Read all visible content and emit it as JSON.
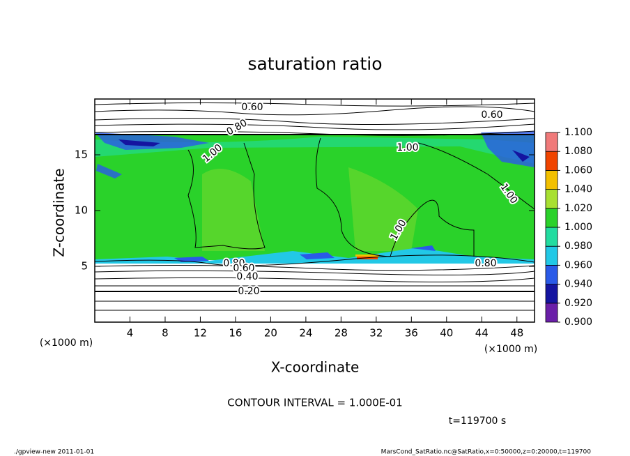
{
  "chart_data": {
    "type": "contour",
    "title": "saturation ratio",
    "x_label": "X-coordinate",
    "y_label": "Z-coordinate",
    "x_unit": "(×1000 m)",
    "xlim": [
      0,
      50
    ],
    "xticks": [
      4,
      8,
      12,
      16,
      20,
      24,
      28,
      32,
      36,
      40,
      44,
      48
    ],
    "ylim": [
      0,
      20
    ],
    "yticks": [
      5,
      10,
      15
    ],
    "grid": false,
    "contour_labels": [
      "0.60",
      "0.60",
      "0.80",
      "1.00",
      "1.00",
      "1.00",
      "1.00",
      "0.80",
      "0.60",
      "0.40",
      "0.20",
      "0.80"
    ],
    "colorbar": {
      "levels": [
        {
          "value": 0.9,
          "label": "0.900"
        },
        {
          "value": 0.92,
          "label": "0.920"
        },
        {
          "value": 0.94,
          "label": "0.940"
        },
        {
          "value": 0.96,
          "label": "0.960"
        },
        {
          "value": 0.98,
          "label": "0.980"
        },
        {
          "value": 1.0,
          "label": "1.000"
        },
        {
          "value": 1.02,
          "label": "1.020"
        },
        {
          "value": 1.04,
          "label": "1.040"
        },
        {
          "value": 1.06,
          "label": "1.060"
        },
        {
          "value": 1.08,
          "label": "1.080"
        },
        {
          "value": 1.1,
          "label": "1.100"
        }
      ],
      "colors": [
        "#6a1fa8",
        "#1414a0",
        "#2a5ae8",
        "#22c8e6",
        "#22dca0",
        "#2ad22a",
        "#a8e032",
        "#f2c000",
        "#f04400",
        "#f07a7a"
      ]
    },
    "contour_interval": "CONTOUR INTERVAL = 1.000E-01",
    "time": "t=119700 s",
    "footer_left": "./gpview-new   2011-01-01",
    "footer_right": "MarsCond_SatRatio.nc@SatRatio,x=0:50000,z=0:20000,t=119700"
  }
}
